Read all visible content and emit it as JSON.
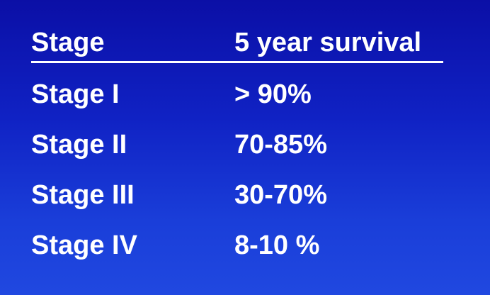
{
  "table": {
    "header": {
      "stage": "Stage",
      "survival": "5 year survival"
    },
    "rows": [
      {
        "stage": "Stage I",
        "survival": "> 90%"
      },
      {
        "stage": "Stage II",
        "survival": "70-85%"
      },
      {
        "stage": "Stage III",
        "survival": "30-70%"
      },
      {
        "stage": "Stage IV",
        "survival": "8-10 %"
      }
    ]
  }
}
